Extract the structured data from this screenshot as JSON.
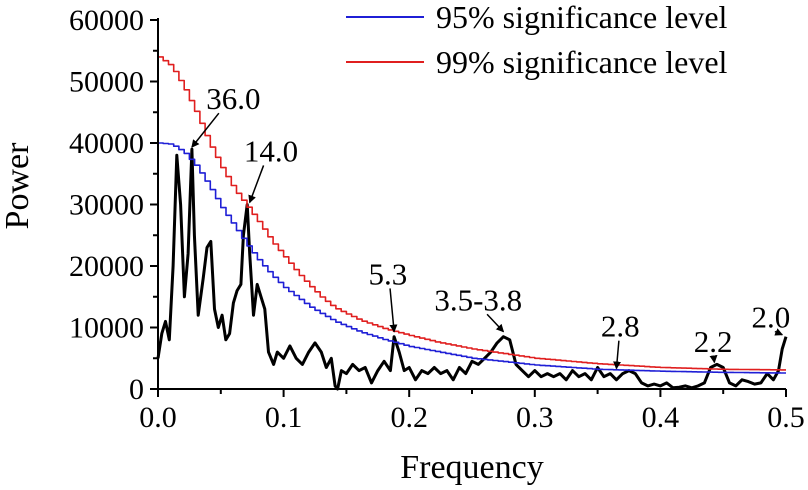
{
  "chart_data": {
    "type": "line",
    "title": "",
    "xlabel": "Frequency",
    "ylabel": "Power",
    "xlim": [
      0.0,
      0.5
    ],
    "ylim": [
      0,
      60000
    ],
    "xticks": [
      0.0,
      0.1,
      0.2,
      0.3,
      0.4,
      0.5
    ],
    "xtick_labels": [
      "0.0",
      "0.1",
      "0.2",
      "0.3",
      "0.4",
      "0.5"
    ],
    "yticks": [
      0,
      10000,
      20000,
      30000,
      40000,
      50000,
      60000
    ],
    "ytick_labels": [
      "0",
      "10000",
      "20000",
      "30000",
      "40000",
      "50000",
      "60000"
    ],
    "grid": false,
    "legend_position": "top-right",
    "legend": [
      {
        "label": "95% significance level",
        "color": "#1f1fd6"
      },
      {
        "label": "99% significance level",
        "color": "#e01f1f"
      }
    ],
    "series": [
      {
        "color": "#000000",
        "x": [
          0.0,
          0.003,
          0.006,
          0.009,
          0.012,
          0.015,
          0.018,
          0.021,
          0.024,
          0.027,
          0.029,
          0.032,
          0.036,
          0.039,
          0.042,
          0.045,
          0.048,
          0.051,
          0.054,
          0.057,
          0.06,
          0.063,
          0.066,
          0.068,
          0.071,
          0.073,
          0.076,
          0.079,
          0.082,
          0.085,
          0.088,
          0.092,
          0.095,
          0.1,
          0.105,
          0.11,
          0.115,
          0.12,
          0.125,
          0.13,
          0.134,
          0.138,
          0.141,
          0.143,
          0.146,
          0.15,
          0.155,
          0.16,
          0.165,
          0.17,
          0.175,
          0.18,
          0.185,
          0.188,
          0.192,
          0.196,
          0.2,
          0.205,
          0.21,
          0.215,
          0.22,
          0.225,
          0.23,
          0.235,
          0.24,
          0.245,
          0.25,
          0.255,
          0.26,
          0.265,
          0.27,
          0.275,
          0.28,
          0.285,
          0.29,
          0.295,
          0.3,
          0.305,
          0.31,
          0.315,
          0.32,
          0.325,
          0.33,
          0.335,
          0.34,
          0.345,
          0.35,
          0.355,
          0.36,
          0.365,
          0.37,
          0.375,
          0.38,
          0.385,
          0.39,
          0.395,
          0.4,
          0.405,
          0.41,
          0.415,
          0.42,
          0.425,
          0.43,
          0.435,
          0.44,
          0.445,
          0.45,
          0.455,
          0.46,
          0.465,
          0.47,
          0.475,
          0.48,
          0.485,
          0.49,
          0.494,
          0.497,
          0.5
        ],
        "y": [
          5000,
          9000,
          11000,
          8000,
          20000,
          38000,
          30000,
          15000,
          22000,
          39000,
          25000,
          12000,
          18000,
          23000,
          24000,
          13000,
          10000,
          12000,
          8000,
          9000,
          14000,
          16000,
          17000,
          25000,
          30000,
          22000,
          12000,
          17000,
          15000,
          13000,
          6000,
          4000,
          6000,
          5000,
          7000,
          5000,
          4000,
          6000,
          7500,
          6000,
          3500,
          5000,
          500,
          0,
          3000,
          2500,
          4000,
          3000,
          3500,
          1000,
          3000,
          4500,
          3000,
          8500,
          6000,
          3000,
          3500,
          1500,
          3000,
          2500,
          3500,
          2500,
          3000,
          1500,
          3500,
          2500,
          4500,
          4000,
          5000,
          6000,
          7500,
          8500,
          8000,
          4000,
          3000,
          2000,
          3000,
          2000,
          2500,
          2000,
          2500,
          1500,
          3000,
          2000,
          2500,
          1500,
          3500,
          2000,
          2500,
          1500,
          2500,
          3000,
          2500,
          1000,
          500,
          800,
          500,
          1000,
          200,
          300,
          500,
          200,
          500,
          1000,
          3500,
          4000,
          3500,
          1000,
          500,
          1500,
          1200,
          800,
          1000,
          2500,
          1500,
          3000,
          6500,
          8500
        ]
      },
      {
        "name": "95% significance level",
        "color": "#1f1fd6",
        "x": [
          0.0,
          0.01,
          0.02,
          0.03,
          0.04,
          0.05,
          0.06,
          0.07,
          0.08,
          0.09,
          0.1,
          0.12,
          0.14,
          0.16,
          0.18,
          0.2,
          0.25,
          0.3,
          0.35,
          0.4,
          0.45,
          0.5
        ],
        "y": [
          40000,
          39800,
          38500,
          36200,
          33000,
          29500,
          26500,
          23500,
          20800,
          18500,
          16500,
          13400,
          11000,
          9300,
          8000,
          6900,
          5000,
          3900,
          3200,
          2900,
          2700,
          2600
        ]
      },
      {
        "name": "99% significance level",
        "color": "#e01f1f",
        "x": [
          0.0,
          0.01,
          0.02,
          0.03,
          0.04,
          0.05,
          0.06,
          0.07,
          0.08,
          0.09,
          0.1,
          0.11,
          0.12,
          0.13,
          0.14,
          0.16,
          0.18,
          0.2,
          0.22,
          0.25,
          0.3,
          0.35,
          0.4,
          0.45,
          0.5
        ],
        "y": [
          54000,
          52500,
          49000,
          44800,
          40000,
          36000,
          32500,
          29800,
          27000,
          24000,
          21500,
          19000,
          16800,
          14800,
          13200,
          11200,
          9800,
          8700,
          7700,
          6500,
          5000,
          4100,
          3500,
          3200,
          3100
        ]
      }
    ],
    "annotations": [
      {
        "text": "36.0",
        "x": 0.027,
        "y": 39000,
        "label_x": 0.06,
        "label_y": 45500
      },
      {
        "text": "14.0",
        "x": 0.073,
        "y": 30000,
        "label_x": 0.09,
        "label_y": 37000
      },
      {
        "text": "5.3",
        "x": 0.188,
        "y": 9000,
        "label_x": 0.183,
        "label_y": 17000
      },
      {
        "text": "3.5-3.8",
        "x": 0.275,
        "y": 9000,
        "label_x": 0.255,
        "label_y": 12800
      },
      {
        "text": "2.8",
        "x": 0.365,
        "y": 3000,
        "label_x": 0.368,
        "label_y": 8500
      },
      {
        "text": "2.2",
        "x": 0.443,
        "y": 4000,
        "label_x": 0.442,
        "label_y": 6000
      },
      {
        "text": "2.0",
        "x": 0.497,
        "y": 8500,
        "label_x": 0.488,
        "label_y": 10000
      }
    ]
  }
}
